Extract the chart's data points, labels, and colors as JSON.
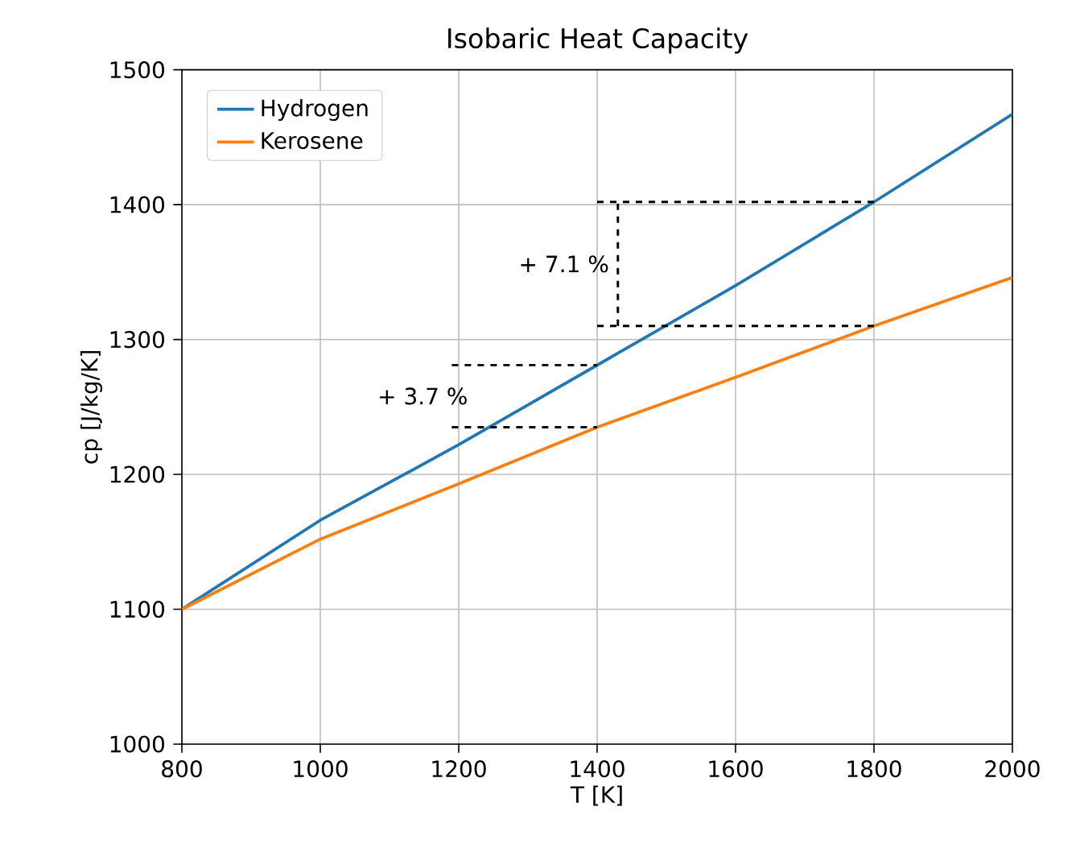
{
  "chart_data": {
    "type": "line",
    "title": "Isobaric Heat Capacity",
    "xlabel": "T [K]",
    "ylabel": "cp [J/kg/K]",
    "x": [
      800,
      1000,
      1200,
      1400,
      1600,
      1800,
      2000
    ],
    "series": [
      {
        "name": "Hydrogen",
        "color": "#1f77b4",
        "values": [
          1100,
          1166,
          1222,
          1281,
          1340,
          1402,
          1467
        ]
      },
      {
        "name": "Kerosene",
        "color": "#ff7f0e",
        "values": [
          1100,
          1152,
          1193,
          1235,
          1272,
          1310,
          1346
        ]
      },
      {
        "color": "#000000",
        "line_style": "dashed",
        "x": [
          1190,
          1400
        ],
        "values": [
          1281,
          1281
        ]
      },
      {
        "color": "#000000",
        "line_style": "dashed",
        "x": [
          1190,
          1400
        ],
        "values": [
          1235,
          1235
        ]
      },
      {
        "color": "#000000",
        "line_style": "dashed",
        "x": [
          1400,
          1800
        ],
        "values": [
          1402,
          1402
        ]
      },
      {
        "color": "#000000",
        "line_style": "dashed",
        "x": [
          1400,
          1800
        ],
        "values": [
          1310,
          1310
        ]
      },
      {
        "color": "#000000",
        "line_style": "dashed",
        "x": [
          1430,
          1430
        ],
        "values": [
          1310,
          1402
        ]
      }
    ],
    "annotations": [
      "+ 3.7 %",
      "+ 7.1 %"
    ],
    "xlim": [
      800,
      2000
    ],
    "ylim": [
      1000,
      1500
    ],
    "xticks": [
      800,
      1000,
      1200,
      1400,
      1600,
      1800,
      2000
    ],
    "yticks": [
      1000,
      1100,
      1200,
      1300,
      1400,
      1500
    ],
    "grid": true,
    "legend": "top left",
    "marker": "none",
    "line_style": "solid"
  }
}
